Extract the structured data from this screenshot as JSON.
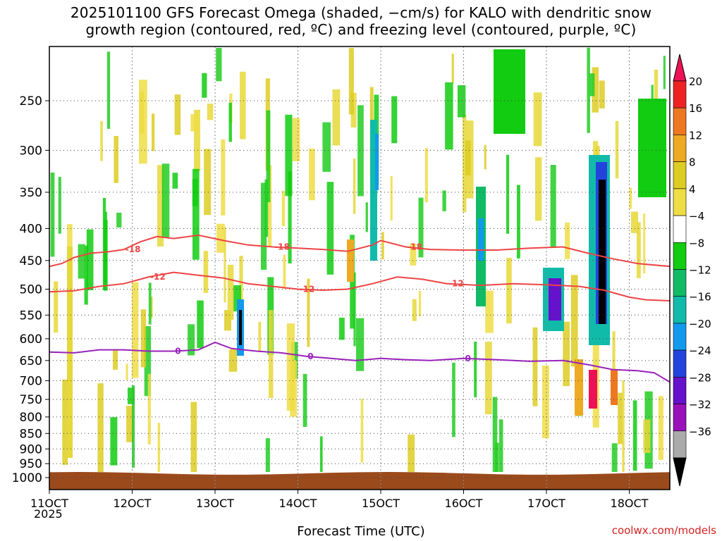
{
  "title_line1": "2025101100 GFS Forecast Omega (shaded, −cm/s) for KALO with dendritic snow",
  "title_line2": "growth region (contoured, red, ºC) and freezing level (contoured, purple, ºC)",
  "credit": "coolwx.com/models",
  "chart_data": {
    "type": "heatmap",
    "title": "2025101100 GFS Forecast Omega (shaded, −cm/s) for KALO with dendritic snow growth region (contoured, red, ºC) and freezing level (contoured, purple, ºC)",
    "xlabel": "Forecast Time (UTC)",
    "x_year_label": "2025",
    "x_ticks": [
      "11OCT",
      "12OCT",
      "13OCT",
      "14OCT",
      "15OCT",
      "16OCT",
      "17OCT",
      "18OCT"
    ],
    "xlim_days": [
      11,
      18.5
    ],
    "y_ticks": [
      250,
      300,
      350,
      400,
      450,
      500,
      550,
      600,
      650,
      700,
      750,
      800,
      850,
      900,
      950,
      1000
    ],
    "ylim_hpa": [
      200,
      1000
    ],
    "y_scale": "log-pressure",
    "grid": true,
    "colorbar": {
      "labels": [
        "20",
        "16",
        "12",
        "8",
        "4",
        "−4",
        "−8",
        "−12",
        "−16",
        "−20",
        "−24",
        "−28",
        "−32",
        "−36"
      ],
      "colors": [
        "#ee1155",
        "#ee2222",
        "#ee7722",
        "#eeaa22",
        "#ddcc22",
        "#eedd44",
        "#ffffff",
        "#11cc11",
        "#11bb66",
        "#11bbaa",
        "#1199ee",
        "#2244dd",
        "#6611cc",
        "#9911bb",
        "#aaaaaa",
        "#000000"
      ]
    },
    "contours": [
      {
        "label": "-18",
        "color": "#ee4444",
        "x": [
          11.0,
          11.15,
          11.3,
          11.5,
          11.7,
          11.9,
          12.1,
          12.3,
          12.5,
          12.8,
          13.1,
          13.4,
          13.7,
          14.0,
          14.3,
          14.6,
          14.9,
          15.0,
          15.3,
          15.6,
          16.0,
          16.4,
          16.8,
          17.2,
          17.5,
          17.8,
          18.1,
          18.5
        ],
        "y": [
          460,
          455,
          445,
          438,
          436,
          432,
          420,
          412,
          415,
          410,
          418,
          425,
          428,
          430,
          432,
          435,
          425,
          418,
          428,
          432,
          433,
          433,
          430,
          428,
          438,
          447,
          455,
          460
        ]
      },
      {
        "label": "-12",
        "color": "#ee4444",
        "x": [
          11.0,
          11.3,
          11.6,
          11.9,
          12.2,
          12.5,
          12.8,
          13.1,
          13.4,
          13.7,
          14.0,
          14.3,
          14.6,
          14.9,
          15.2,
          15.5,
          15.8,
          16.2,
          16.6,
          17.0,
          17.4,
          17.7,
          18.0,
          18.2,
          18.5
        ],
        "y": [
          505,
          503,
          495,
          490,
          478,
          470,
          475,
          480,
          490,
          495,
          500,
          502,
          500,
          490,
          478,
          482,
          490,
          493,
          490,
          492,
          495,
          502,
          515,
          520,
          522
        ]
      },
      {
        "label": "0",
        "color": "#9922bb",
        "x": [
          11.0,
          11.3,
          11.6,
          11.9,
          12.2,
          12.5,
          12.8,
          13.0,
          13.2,
          13.5,
          13.8,
          14.1,
          14.4,
          14.7,
          15.0,
          15.3,
          15.6,
          16.0,
          16.4,
          16.8,
          17.2,
          17.5,
          17.8,
          18.1,
          18.3,
          18.5
        ],
        "y": [
          630,
          632,
          625,
          625,
          628,
          628,
          625,
          608,
          622,
          628,
          632,
          640,
          645,
          650,
          645,
          648,
          650,
          645,
          648,
          652,
          650,
          660,
          672,
          675,
          680,
          705
        ]
      }
    ]
  }
}
